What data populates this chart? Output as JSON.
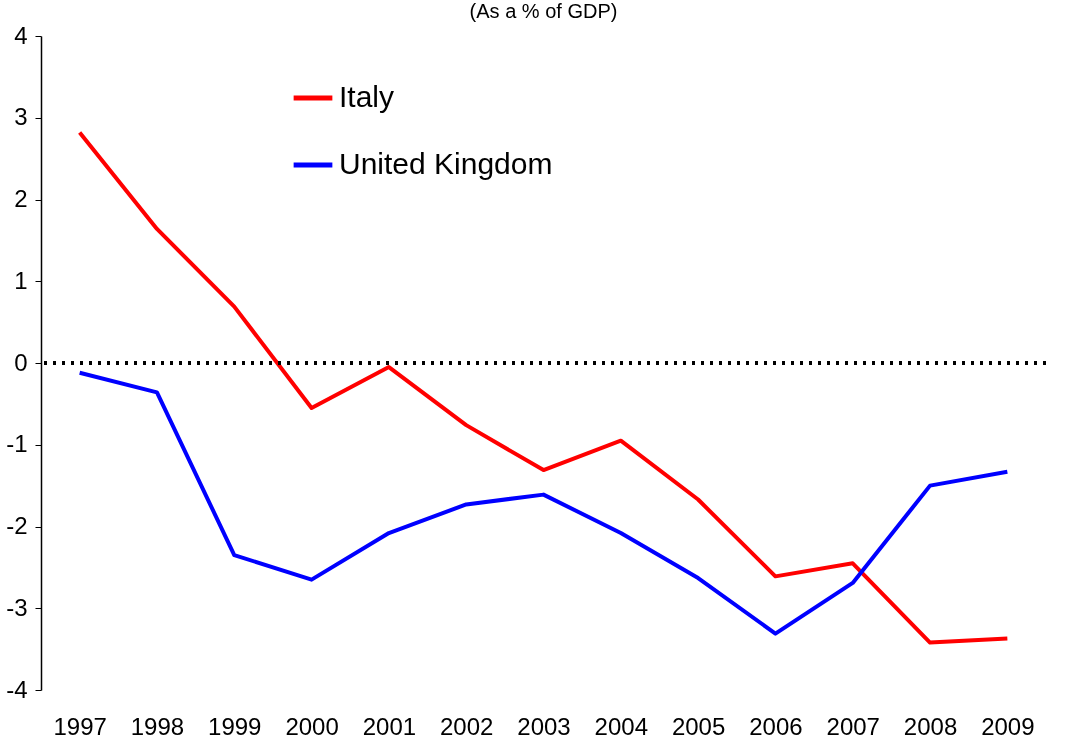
{
  "chart_data": {
    "type": "line",
    "title": "(As a % of GDP)",
    "categories": [
      "1997",
      "1998",
      "1999",
      "2000",
      "2001",
      "2002",
      "2003",
      "2004",
      "2005",
      "2006",
      "2007",
      "2008",
      "2009"
    ],
    "series": [
      {
        "name": "Italy",
        "color": "#ff0000",
        "values": [
          2.82,
          1.64,
          0.69,
          -0.55,
          -0.05,
          -0.76,
          -1.31,
          -0.95,
          -1.67,
          -2.61,
          -2.45,
          -3.42,
          -3.37
        ]
      },
      {
        "name": "United Kingdom",
        "color": "#0000ff",
        "values": [
          -0.12,
          -0.36,
          -2.35,
          -2.65,
          -2.08,
          -1.73,
          -1.61,
          -2.08,
          -2.63,
          -3.31,
          -2.69,
          -1.5,
          -1.33
        ]
      }
    ],
    "ylim": [
      -4,
      4
    ],
    "yticks": [
      -4,
      -3,
      -2,
      -1,
      0,
      1,
      2,
      3,
      4
    ],
    "ref_lines": [
      {
        "axis": "y",
        "value": 0,
        "color": "#000000",
        "line_style": "dotted"
      }
    ],
    "grid": false,
    "legend": "top left",
    "marker": "none",
    "line_style": "solid"
  }
}
